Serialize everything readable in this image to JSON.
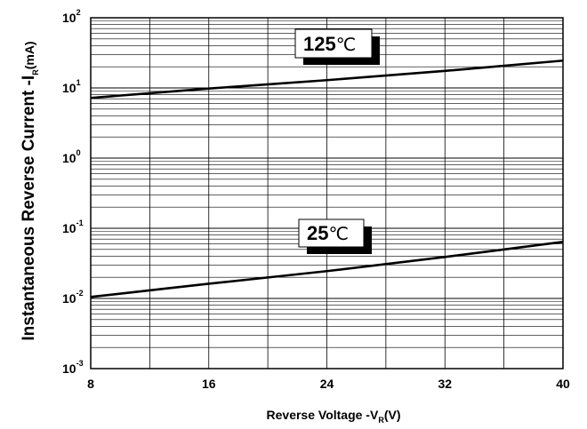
{
  "chart_data": {
    "type": "line",
    "xlabel": {
      "main": "Reverse  Voltage -V",
      "sub": "R",
      "unit": "(V)"
    },
    "ylabel": {
      "main": "Instantaneous Reverse Current -I",
      "sub": "R",
      "unit": "(mA)"
    },
    "x_ticks": [
      "8",
      "16",
      "24",
      "32",
      "40"
    ],
    "y_ticks": [
      {
        "base": "10",
        "exp": "2"
      },
      {
        "base": "10",
        "exp": "1"
      },
      {
        "base": "10",
        "exp": "0"
      },
      {
        "base": "10",
        "exp": "-1"
      },
      {
        "base": "10",
        "exp": "-2"
      },
      {
        "base": "10",
        "exp": "-3"
      }
    ],
    "xlim": [
      8,
      40
    ],
    "ylim": [
      0.001,
      100
    ],
    "y_scale": "log",
    "grid": true,
    "series": [
      {
        "name": "125℃",
        "label_value": "125",
        "label_unit": "℃",
        "x": [
          8,
          16,
          24,
          32,
          40
        ],
        "y": [
          7.2,
          9.8,
          12.9,
          17.5,
          24.5
        ]
      },
      {
        "name": "25℃",
        "label_value": "25",
        "label_unit": "℃",
        "x": [
          8,
          16,
          24,
          32,
          40
        ],
        "y": [
          0.0105,
          0.0162,
          0.0245,
          0.039,
          0.064
        ]
      }
    ]
  }
}
